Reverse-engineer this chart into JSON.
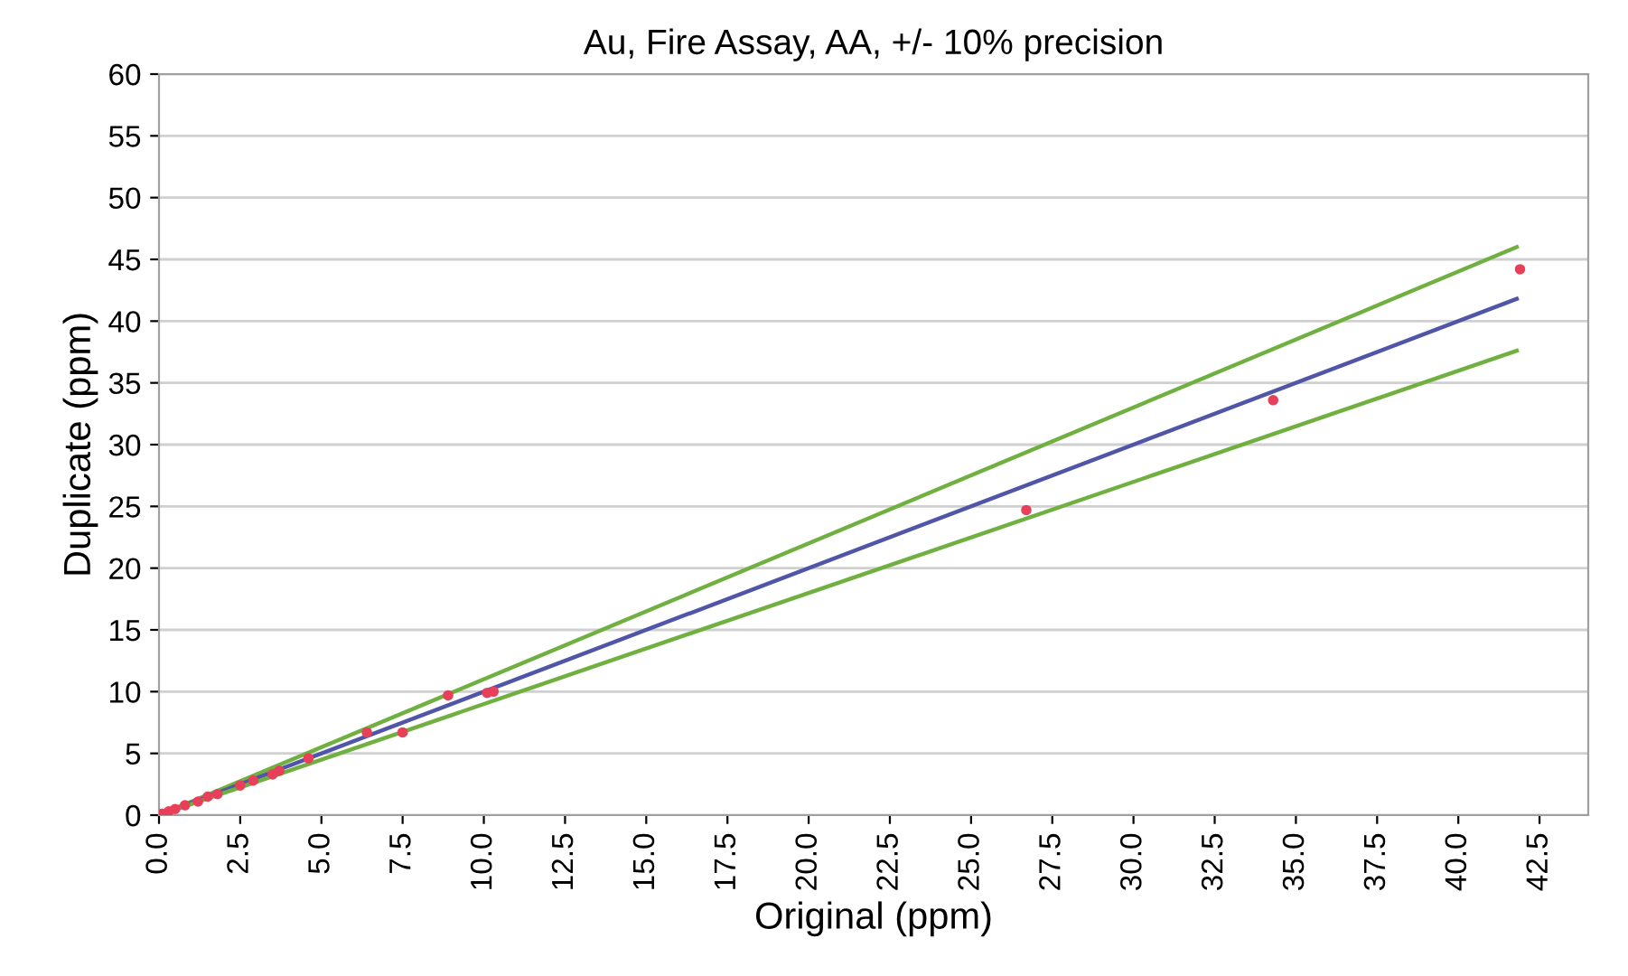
{
  "chart_data": {
    "type": "scatter",
    "title": "Au, Fire Assay, AA, +/- 10% precision",
    "xlabel": "Original (ppm)",
    "ylabel": "Duplicate (ppm)",
    "series": [
      {
        "type": "line",
        "marker": "none",
        "color": "#70b040",
        "x": [
          0,
          41.8
        ],
        "values": [
          0,
          46.0
        ]
      },
      {
        "type": "line",
        "marker": "none",
        "color": "#5055a8",
        "x": [
          0,
          41.8
        ],
        "values": [
          0,
          41.8
        ]
      },
      {
        "type": "line",
        "marker": "none",
        "color": "#70b040",
        "x": [
          0,
          41.8
        ],
        "values": [
          0,
          37.6
        ]
      },
      {
        "color": "#e8405a",
        "x": [
          0.1,
          0.3,
          0.5,
          0.8,
          1.2,
          1.5,
          1.8,
          2.5,
          2.9,
          3.5,
          3.7,
          4.6,
          6.4,
          7.5,
          8.9,
          10.1,
          10.3,
          26.7,
          34.3,
          41.9
        ],
        "values": [
          0.1,
          0.3,
          0.5,
          0.8,
          1.1,
          1.5,
          1.7,
          2.4,
          2.8,
          3.3,
          3.6,
          4.6,
          6.7,
          6.7,
          9.7,
          9.9,
          10.0,
          24.7,
          33.6,
          44.2
        ]
      }
    ],
    "marker": "circle",
    "grid": "y",
    "xlim": [
      0,
      44
    ],
    "ylim": [
      0,
      60
    ],
    "xticks": [
      {
        "value": 0,
        "label": "0.0"
      },
      {
        "value": 2.5,
        "label": "2.5"
      },
      {
        "value": 5,
        "label": "5.0"
      },
      {
        "value": 7.5,
        "label": "7.5"
      },
      {
        "value": 10,
        "label": "10.0"
      },
      {
        "value": 12.5,
        "label": "12.5"
      },
      {
        "value": 15,
        "label": "15.0"
      },
      {
        "value": 17.5,
        "label": "17.5"
      },
      {
        "value": 20,
        "label": "20.0"
      },
      {
        "value": 22.5,
        "label": "22.5"
      },
      {
        "value": 25,
        "label": "25.0"
      },
      {
        "value": 27.5,
        "label": "27.5"
      },
      {
        "value": 30,
        "label": "30.0"
      },
      {
        "value": 32.5,
        "label": "32.5"
      },
      {
        "value": 35,
        "label": "35.0"
      },
      {
        "value": 37.5,
        "label": "37.5"
      },
      {
        "value": 40,
        "label": "40.0"
      },
      {
        "value": 42.5,
        "label": "42.5"
      }
    ],
    "yticks": [
      0,
      5,
      10,
      15,
      20,
      25,
      30,
      35,
      40,
      45,
      50,
      55,
      60
    ]
  }
}
